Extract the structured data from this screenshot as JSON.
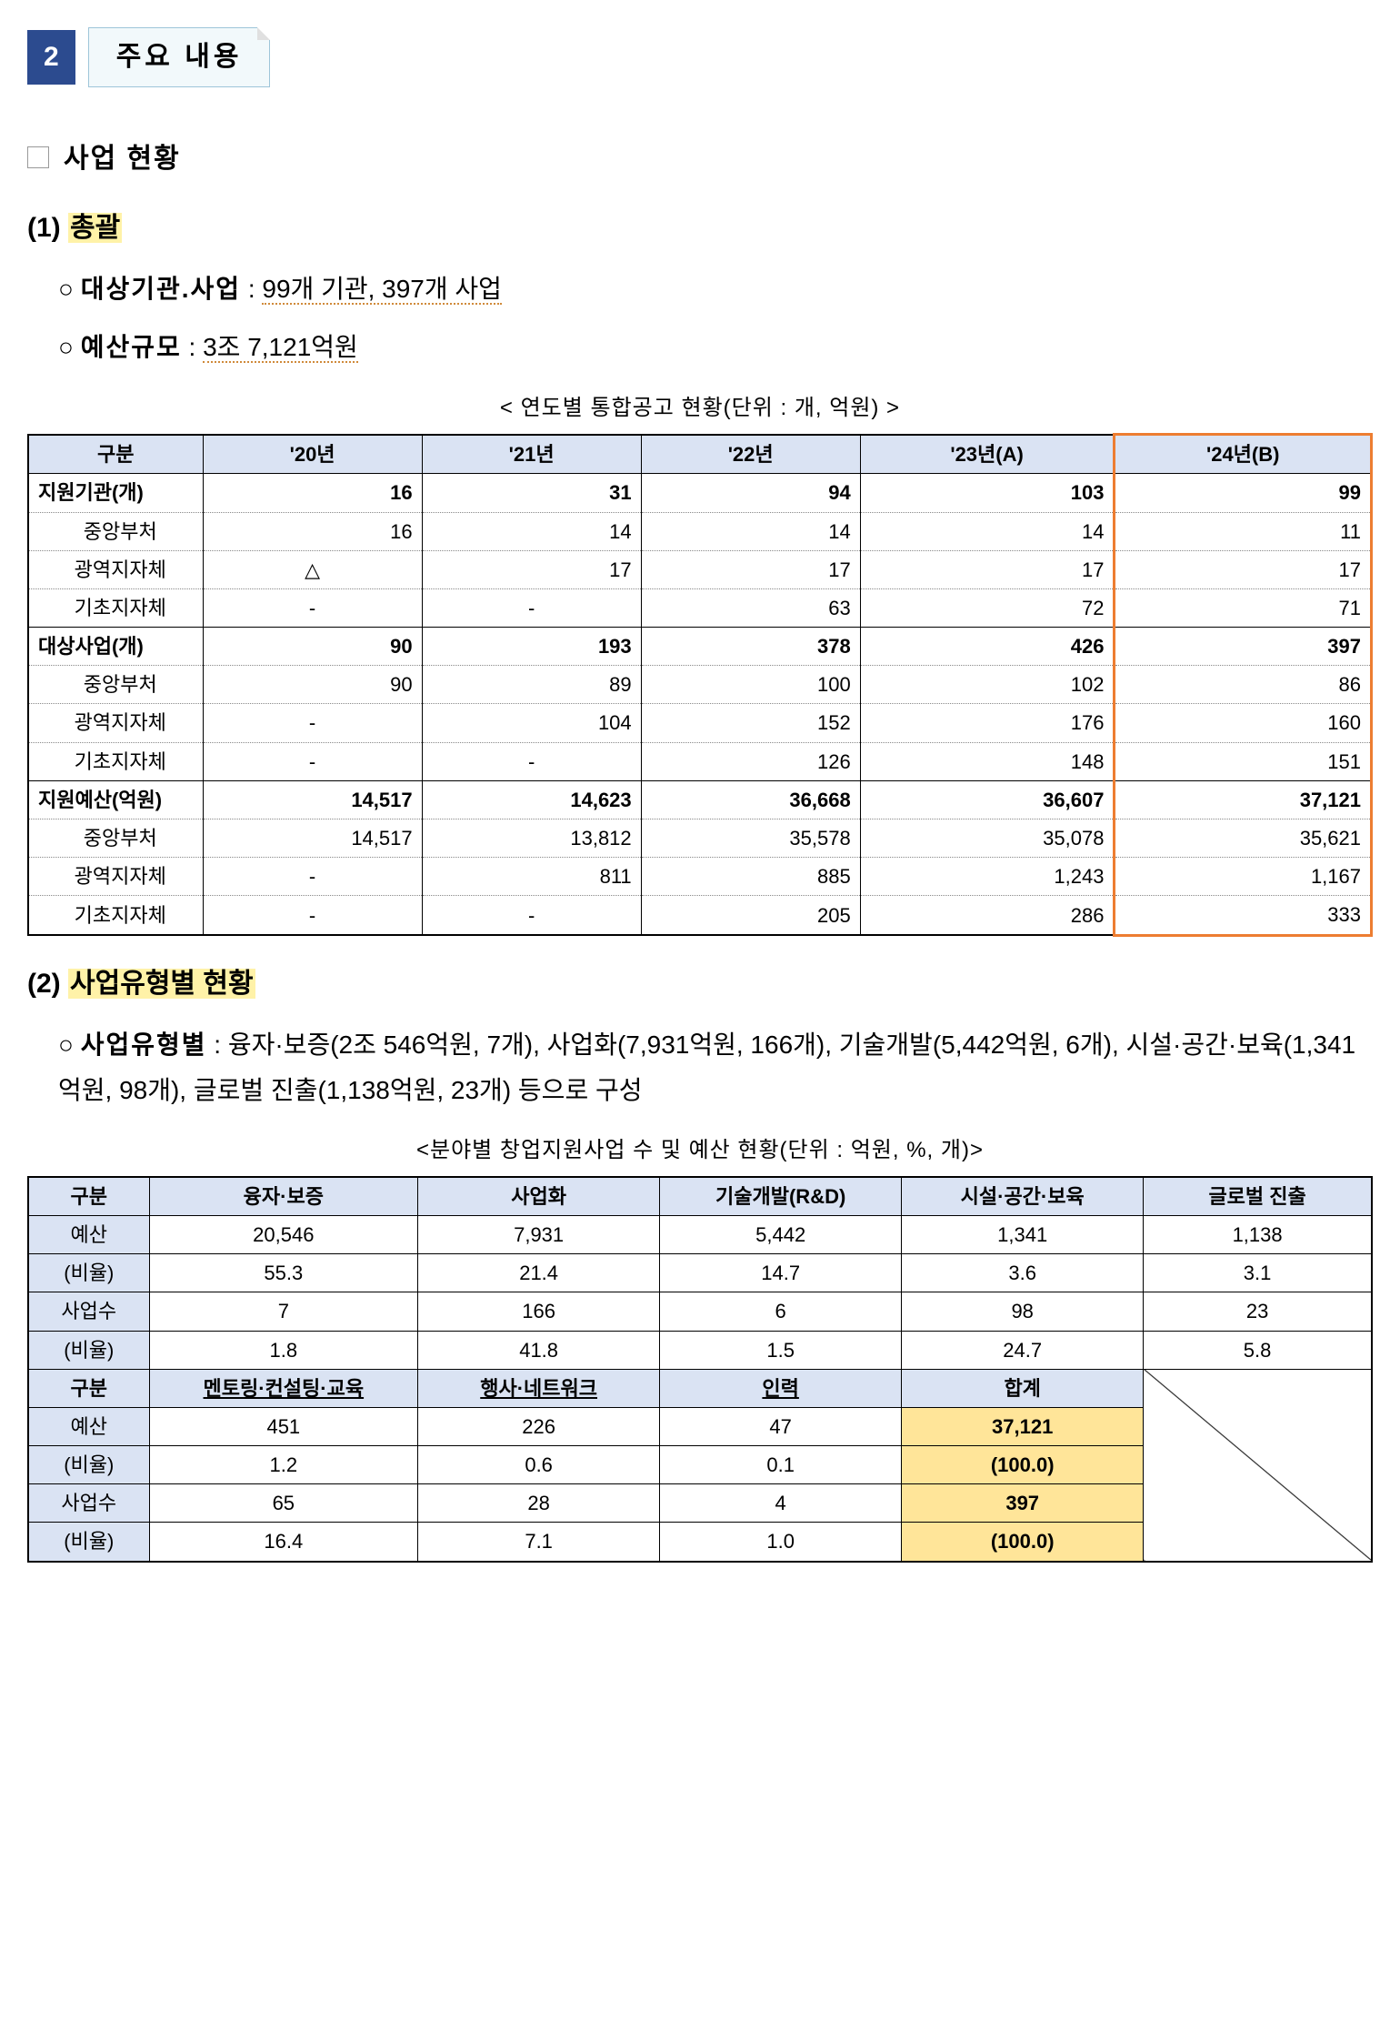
{
  "section": {
    "number": "2",
    "title": "주요 내용"
  },
  "h1": {
    "text": "사업 현황"
  },
  "s1": {
    "num": "(1)",
    "title": "총괄",
    "line1_lbl": "대상기관.사업",
    "line1_val": "99개 기관, 397개 사업",
    "line2_lbl": "예산규모",
    "line2_val": "3조 7,121억원"
  },
  "t1": {
    "caption": "< 연도별 통합공고 현황(단위 : 개, 억원) >",
    "headers": [
      "구분",
      "'20년",
      "'21년",
      "'22년",
      "'23년(A)",
      "'24년(B)"
    ],
    "groups": [
      {
        "label": "지원기관(개)",
        "vals": [
          "16",
          "31",
          "94",
          "103",
          "99"
        ],
        "subs": [
          {
            "label": "중앙부처",
            "vals": [
              "16",
              "14",
              "14",
              "14",
              "11"
            ]
          },
          {
            "label": "광역지자체",
            "vals": [
              "△",
              "17",
              "17",
              "17",
              "17"
            ]
          },
          {
            "label": "기초지자체",
            "vals": [
              "-",
              "-",
              "63",
              "72",
              "71"
            ]
          }
        ]
      },
      {
        "label": "대상사업(개)",
        "vals": [
          "90",
          "193",
          "378",
          "426",
          "397"
        ],
        "subs": [
          {
            "label": "중앙부처",
            "vals": [
              "90",
              "89",
              "100",
              "102",
              "86"
            ]
          },
          {
            "label": "광역지자체",
            "vals": [
              "-",
              "104",
              "152",
              "176",
              "160"
            ]
          },
          {
            "label": "기초지자체",
            "vals": [
              "-",
              "-",
              "126",
              "148",
              "151"
            ]
          }
        ]
      },
      {
        "label": "지원예산(억원)",
        "vals": [
          "14,517",
          "14,623",
          "36,668",
          "36,607",
          "37,121"
        ],
        "subs": [
          {
            "label": "중앙부처",
            "vals": [
              "14,517",
              "13,812",
              "35,578",
              "35,078",
              "35,621"
            ]
          },
          {
            "label": "광역지자체",
            "vals": [
              "-",
              "811",
              "885",
              "1,243",
              "1,167"
            ]
          },
          {
            "label": "기초지자체",
            "vals": [
              "-",
              "-",
              "205",
              "286",
              "333"
            ]
          }
        ]
      }
    ]
  },
  "s2": {
    "num": "(2)",
    "title": "사업유형별 현황",
    "lbl": "사업유형별",
    "body": "융자·보증(2조 546억원, 7개), 사업화(7,931억원, 166개), 기술개발(5,442억원, 6개), 시설·공간·보육(1,341억원, 98개), 글로벌 진출(1,138억원, 23개) 등으로 구성"
  },
  "t2": {
    "caption": "<분야별 창업지원사업 수 및 예산 현황(단위 : 억원, %, 개)>",
    "h1": [
      "구분",
      "융자·보증",
      "사업화",
      "기술개발(R&D)",
      "시설·공간·보육",
      "글로벌 진출"
    ],
    "h2": [
      "구분",
      "멘토링·컨설팅·교육",
      "행사·네트워크",
      "인력",
      "합계"
    ],
    "row_lbls": [
      "예산",
      "(비율)",
      "사업수",
      "(비율)"
    ],
    "r1": [
      [
        "20,546",
        "7,931",
        "5,442",
        "1,341",
        "1,138"
      ],
      [
        "55.3",
        "21.4",
        "14.7",
        "3.6",
        "3.1"
      ],
      [
        "7",
        "166",
        "6",
        "98",
        "23"
      ],
      [
        "1.8",
        "41.8",
        "1.5",
        "24.7",
        "5.8"
      ]
    ],
    "r2": [
      [
        "451",
        "226",
        "47",
        "37,121"
      ],
      [
        "1.2",
        "0.6",
        "0.1",
        "(100.0)"
      ],
      [
        "65",
        "28",
        "4",
        "397"
      ],
      [
        "16.4",
        "7.1",
        "1.0",
        "(100.0)"
      ]
    ]
  }
}
